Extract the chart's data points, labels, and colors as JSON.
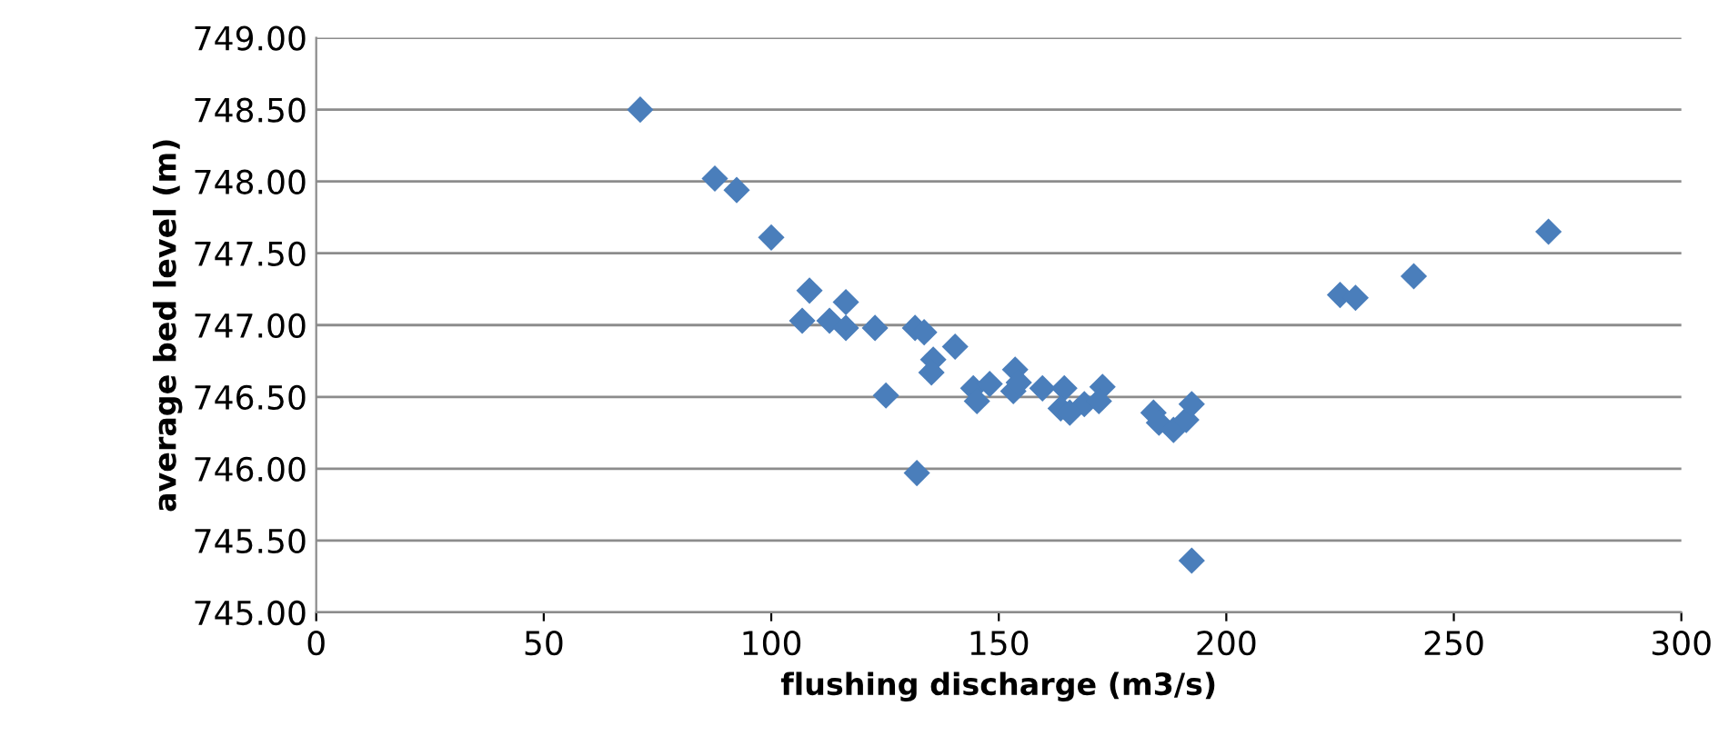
{
  "chart_data": {
    "type": "scatter",
    "xlabel": "flushing discharge (m3/s)",
    "ylabel": "average bed level (m)",
    "x": [
      71.2,
      87.6,
      92.4,
      100,
      108.4,
      106.8,
      112.8,
      116.4,
      116.4,
      122.8,
      125.2,
      131.6,
      133.6,
      135.6,
      135.2,
      140.4,
      132,
      144.4,
      145.2,
      148,
      153.2,
      153.6,
      154.4,
      159.6,
      164.4,
      163.6,
      168.8,
      165.6,
      172.8,
      172,
      184,
      185.2,
      188.4,
      191.2,
      192.4,
      192.4,
      225,
      228.4,
      241.2,
      270.8
    ],
    "series": [
      {
        "color": "#4a7ebb",
        "values": [
          748.5,
          748.02,
          747.94,
          747.61,
          747.24,
          747.03,
          747.03,
          747.16,
          746.98,
          746.98,
          746.51,
          746.98,
          746.95,
          746.76,
          746.67,
          746.85,
          745.97,
          746.56,
          746.47,
          746.59,
          746.54,
          746.69,
          746.6,
          746.56,
          746.56,
          746.42,
          746.45,
          746.39,
          746.57,
          746.47,
          746.39,
          746.32,
          746.27,
          746.34,
          746.45,
          745.36,
          747.21,
          747.19,
          747.34,
          747.65
        ]
      }
    ],
    "marker": "diamond",
    "grid": "y",
    "xlim": [
      0,
      300
    ],
    "xticks": [
      0,
      50,
      100,
      150,
      200,
      250,
      300
    ],
    "ylim": [
      745,
      749
    ],
    "yticks": [
      {
        "value": 745,
        "label": "745.00"
      },
      {
        "value": 745.5,
        "label": "745.50"
      },
      {
        "value": 746,
        "label": "746.00"
      },
      {
        "value": 746.5,
        "label": "746.50"
      },
      {
        "value": 747,
        "label": "747.00"
      },
      {
        "value": 747.5,
        "label": "747.50"
      },
      {
        "value": 748,
        "label": "748.00"
      },
      {
        "value": 748.5,
        "label": "748.50"
      },
      {
        "value": 749,
        "label": "749.00"
      }
    ]
  }
}
